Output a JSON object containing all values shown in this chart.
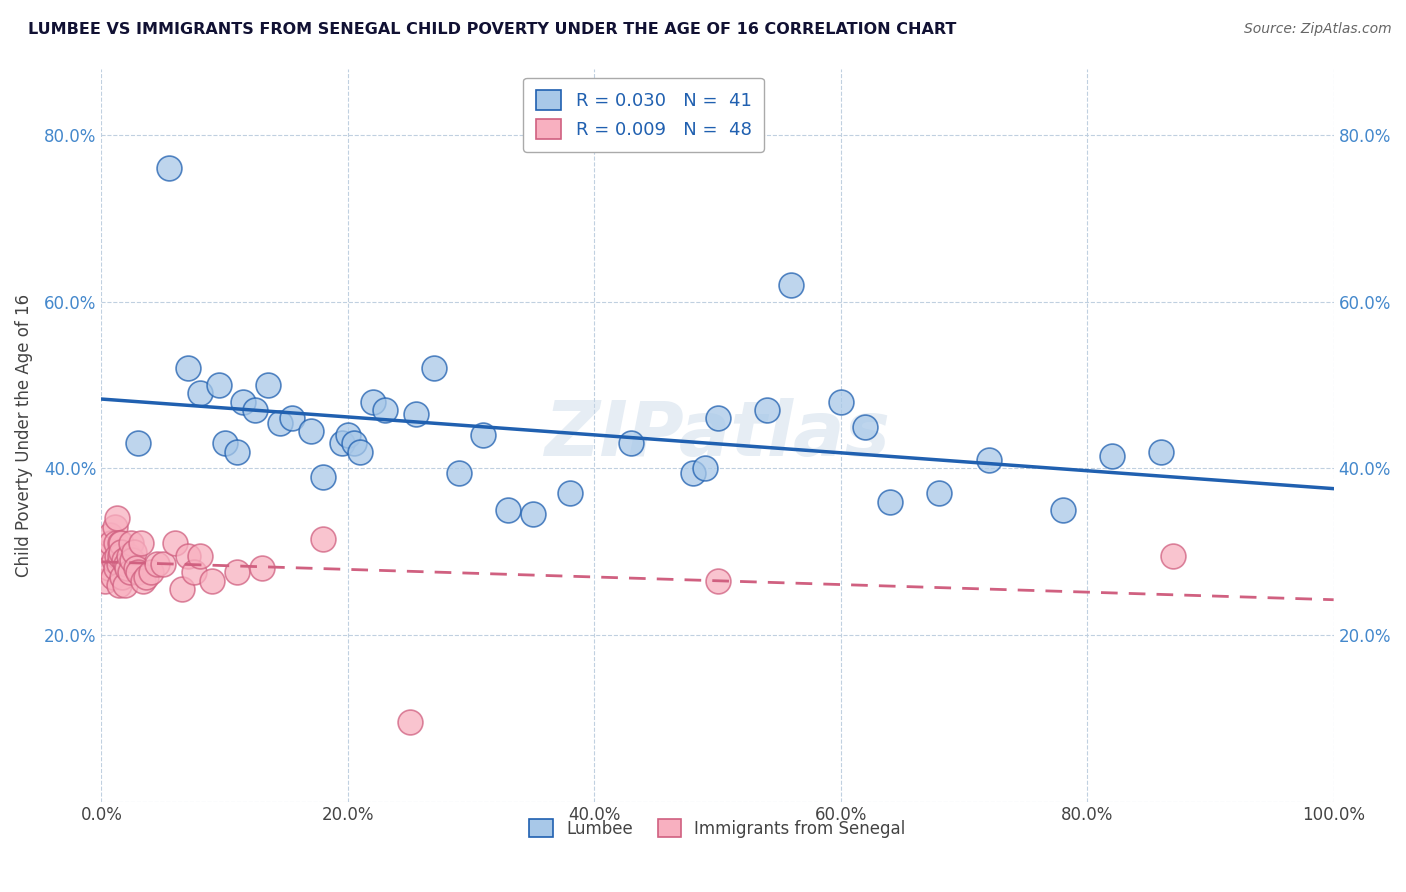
{
  "title": "LUMBEE VS IMMIGRANTS FROM SENEGAL CHILD POVERTY UNDER THE AGE OF 16 CORRELATION CHART",
  "source": "Source: ZipAtlas.com",
  "ylabel": "Child Poverty Under the Age of 16",
  "watermark": "ZIPatlas",
  "lumbee_color": "#a8c8e8",
  "senegal_color": "#f8b0c0",
  "lumbee_line_color": "#2060b0",
  "senegal_line_color": "#d06080",
  "background_color": "#ffffff",
  "grid_color": "#c0d0e0",
  "lumbee_x": [
    0.03,
    0.055,
    0.07,
    0.08,
    0.095,
    0.1,
    0.11,
    0.115,
    0.125,
    0.135,
    0.145,
    0.155,
    0.17,
    0.18,
    0.195,
    0.2,
    0.205,
    0.21,
    0.22,
    0.23,
    0.255,
    0.27,
    0.29,
    0.31,
    0.33,
    0.35,
    0.38,
    0.43,
    0.48,
    0.49,
    0.5,
    0.54,
    0.56,
    0.6,
    0.62,
    0.64,
    0.68,
    0.72,
    0.78,
    0.82,
    0.86
  ],
  "lumbee_y": [
    0.43,
    0.76,
    0.52,
    0.49,
    0.5,
    0.43,
    0.42,
    0.48,
    0.47,
    0.5,
    0.455,
    0.46,
    0.445,
    0.39,
    0.43,
    0.44,
    0.43,
    0.42,
    0.48,
    0.47,
    0.465,
    0.52,
    0.395,
    0.44,
    0.35,
    0.345,
    0.37,
    0.43,
    0.395,
    0.4,
    0.46,
    0.47,
    0.62,
    0.48,
    0.45,
    0.36,
    0.37,
    0.41,
    0.35,
    0.415,
    0.42
  ],
  "senegal_x": [
    0.003,
    0.005,
    0.006,
    0.007,
    0.008,
    0.009,
    0.01,
    0.011,
    0.012,
    0.012,
    0.013,
    0.013,
    0.014,
    0.014,
    0.015,
    0.015,
    0.016,
    0.016,
    0.017,
    0.018,
    0.019,
    0.02,
    0.021,
    0.022,
    0.023,
    0.024,
    0.025,
    0.026,
    0.028,
    0.03,
    0.032,
    0.034,
    0.036,
    0.04,
    0.045,
    0.05,
    0.06,
    0.065,
    0.07,
    0.075,
    0.08,
    0.09,
    0.11,
    0.13,
    0.18,
    0.25,
    0.5,
    0.87
  ],
  "senegal_y": [
    0.265,
    0.3,
    0.28,
    0.32,
    0.31,
    0.27,
    0.29,
    0.33,
    0.31,
    0.28,
    0.295,
    0.34,
    0.285,
    0.26,
    0.31,
    0.295,
    0.31,
    0.3,
    0.27,
    0.29,
    0.26,
    0.285,
    0.28,
    0.295,
    0.275,
    0.31,
    0.29,
    0.3,
    0.28,
    0.275,
    0.31,
    0.265,
    0.27,
    0.275,
    0.285,
    0.285,
    0.31,
    0.255,
    0.295,
    0.275,
    0.295,
    0.265,
    0.275,
    0.28,
    0.315,
    0.095,
    0.265,
    0.295
  ],
  "xlim": [
    0.0,
    1.0
  ],
  "ylim": [
    0.0,
    0.88
  ],
  "xticks": [
    0.0,
    0.2,
    0.4,
    0.6,
    0.8,
    1.0
  ],
  "yticks": [
    0.0,
    0.2,
    0.4,
    0.6,
    0.8
  ],
  "xticklabels": [
    "0.0%",
    "20.0%",
    "40.0%",
    "60.0%",
    "80.0%",
    "100.0%"
  ],
  "left_yticklabels": [
    "",
    "20.0%",
    "40.0%",
    "60.0%",
    "80.0%"
  ],
  "right_yticklabels": [
    "",
    "20.0%",
    "40.0%",
    "60.0%",
    "80.0%"
  ]
}
